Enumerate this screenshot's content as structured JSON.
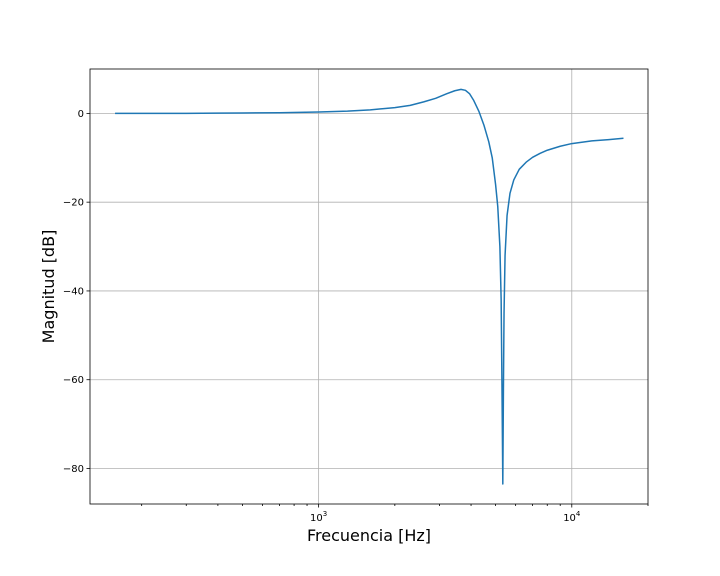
{
  "chart_data": {
    "type": "line",
    "xlabel": "Frecuencia [Hz]",
    "ylabel": "Magnitud [dB]",
    "xscale": "log",
    "xlim": [
      125,
      20000
    ],
    "ylim": [
      -88,
      10
    ],
    "grid": true,
    "x_ticks": [
      {
        "value": 1000,
        "base": "10",
        "exp": "3"
      },
      {
        "value": 10000,
        "base": "10",
        "exp": "4"
      }
    ],
    "y_ticks": [
      {
        "value": 0,
        "label": "0"
      },
      {
        "value": -20,
        "label": "−20"
      },
      {
        "value": -40,
        "label": "−40"
      },
      {
        "value": -60,
        "label": "−60"
      },
      {
        "value": -80,
        "label": "−80"
      }
    ],
    "line_color": "#1f77b4",
    "series": [
      {
        "x": [
          157,
          200,
          300,
          400,
          500,
          700,
          1000,
          1300,
          1600,
          2000,
          2300,
          2600,
          2900,
          3200,
          3450,
          3650,
          3800,
          3950,
          4100,
          4300,
          4500,
          4700,
          4850,
          5000,
          5100,
          5200,
          5260,
          5300,
          5340,
          5370,
          5400,
          5450,
          5550,
          5700,
          5900,
          6200,
          6600,
          7000,
          7500,
          8000,
          9000,
          10000,
          12000,
          14000,
          16000
        ],
        "y": [
          0.0,
          0.0,
          0.0,
          0.05,
          0.08,
          0.15,
          0.3,
          0.5,
          0.8,
          1.3,
          1.8,
          2.6,
          3.4,
          4.4,
          5.1,
          5.4,
          5.2,
          4.4,
          2.9,
          0.4,
          -2.7,
          -6.4,
          -10,
          -16,
          -21,
          -30,
          -42,
          -62,
          -83.5,
          -62,
          -45,
          -32,
          -23,
          -18,
          -15,
          -12.6,
          -11,
          -9.9,
          -9,
          -8.3,
          -7.4,
          -6.8,
          -6.2,
          -5.9,
          -5.6
        ]
      }
    ]
  }
}
